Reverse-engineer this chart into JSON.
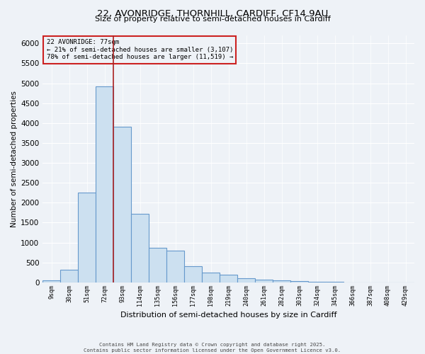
{
  "title_line1": "22, AVONRIDGE, THORNHILL, CARDIFF, CF14 9AU",
  "title_line2": "Size of property relative to semi-detached houses in Cardiff",
  "xlabel": "Distribution of semi-detached houses by size in Cardiff",
  "ylabel": "Number of semi-detached properties",
  "bins": [
    "9sqm",
    "30sqm",
    "51sqm",
    "72sqm",
    "93sqm",
    "114sqm",
    "135sqm",
    "156sqm",
    "177sqm",
    "198sqm",
    "219sqm",
    "240sqm",
    "261sqm",
    "282sqm",
    "303sqm",
    "324sqm",
    "345sqm",
    "366sqm",
    "387sqm",
    "408sqm",
    "429sqm"
  ],
  "values": [
    50,
    310,
    2250,
    4920,
    3900,
    1720,
    870,
    790,
    400,
    250,
    190,
    100,
    70,
    45,
    25,
    12,
    7,
    4,
    2,
    2,
    1
  ],
  "bar_color": "#cce0f0",
  "bar_edge_color": "#6699cc",
  "bar_linewidth": 0.8,
  "vline_color": "#aa2222",
  "vline_index": 3.5,
  "annotation_title": "22 AVONRIDGE: 77sqm",
  "annotation_line2": "← 21% of semi-detached houses are smaller (3,107)",
  "annotation_line3": "78% of semi-detached houses are larger (11,519) →",
  "annotation_box_color": "#cc2222",
  "ylim": [
    0,
    6200
  ],
  "yticks": [
    0,
    500,
    1000,
    1500,
    2000,
    2500,
    3000,
    3500,
    4000,
    4500,
    5000,
    5500,
    6000
  ],
  "background_color": "#eef2f7",
  "grid_color": "#ffffff",
  "footer_line1": "Contains HM Land Registry data © Crown copyright and database right 2025.",
  "footer_line2": "Contains public sector information licensed under the Open Government Licence v3.0."
}
